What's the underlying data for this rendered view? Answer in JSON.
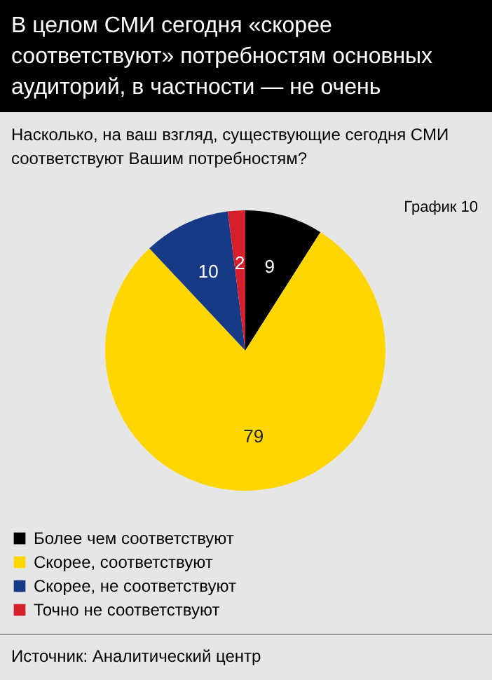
{
  "chart_data": {
    "type": "pie",
    "title": "В целом СМИ сегодня «скорее соответствуют» потребностям основных аудиторий, в частности — не очень",
    "subtitle": "Насколько, на ваш взгляд, существующие сегодня СМИ соответствуют Вашим потребностям?",
    "categories": [
      "Более чем соответствуют",
      "Скорее, соответствуют",
      "Скорее, не соответствуют",
      "Точно не соответствуют"
    ],
    "values": [
      9,
      79,
      10,
      2
    ],
    "colors": [
      "#000000",
      "#ffd600",
      "#173a86",
      "#d4202c"
    ],
    "data_labels": true,
    "legend": "bottom left",
    "annotations": [
      "График 10",
      "Источник: Аналитический центр"
    ]
  }
}
